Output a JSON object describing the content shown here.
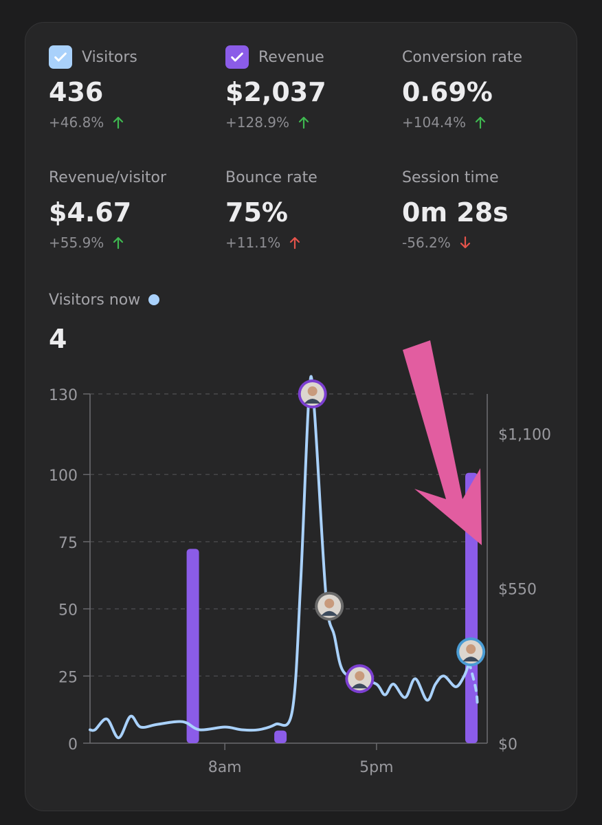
{
  "metrics": [
    {
      "label": "Visitors",
      "value": "436",
      "change": "+46.8%",
      "direction": "up",
      "checkbox": "checked",
      "checkbox_color": "#a9d1fb"
    },
    {
      "label": "Revenue",
      "value": "$2,037",
      "change": "+128.9%",
      "direction": "up",
      "checkbox": "checked",
      "checkbox_color": "#8b5ce8"
    },
    {
      "label": "Conversion rate",
      "value": "0.69%",
      "change": "+104.4%",
      "direction": "up"
    },
    {
      "label": "Revenue/visitor",
      "value": "$4.67",
      "change": "+55.9%",
      "direction": "up"
    },
    {
      "label": "Bounce rate",
      "value": "75%",
      "change": "+11.1%",
      "direction": "up-bad"
    },
    {
      "label": "Session time",
      "value": "0m 28s",
      "change": "-56.2%",
      "direction": "down"
    }
  ],
  "visitors_now": {
    "label": "Visitors now",
    "value": "4",
    "dot_color": "#a9d1fb"
  },
  "colors": {
    "up": "#3fb950",
    "bad": "#e5534b",
    "line": "#a9d1fb",
    "bar": "#8b5ce8",
    "annotation": "#e25da0"
  },
  "chart_data": {
    "type": "line",
    "left_axis": {
      "ticks": [
        "0",
        "25",
        "50",
        "75",
        "100",
        "130"
      ],
      "values": [
        0,
        25,
        50,
        75,
        100,
        130
      ]
    },
    "right_axis": {
      "ticks": [
        "$0",
        "$550",
        "$1,100"
      ],
      "values": [
        0,
        550,
        1100
      ]
    },
    "x_labels": [
      {
        "label": "8am",
        "at": 8
      },
      {
        "label": "5pm",
        "at": 17
      }
    ],
    "x_range": [
      0,
      23
    ],
    "series": [
      {
        "kind": "visitors-line",
        "axis": "left",
        "points": [
          [
            0,
            5
          ],
          [
            0.3,
            5
          ],
          [
            1,
            9
          ],
          [
            1.7,
            2
          ],
          [
            2.4,
            10
          ],
          [
            3,
            6
          ],
          [
            4,
            7
          ],
          [
            5.5,
            8
          ],
          [
            6.5,
            5
          ],
          [
            8,
            6
          ],
          [
            9,
            5
          ],
          [
            10,
            5
          ],
          [
            11,
            7
          ],
          [
            12,
            12
          ],
          [
            12.5,
            60
          ],
          [
            13,
            130
          ],
          [
            13.3,
            125
          ],
          [
            14,
            55
          ],
          [
            14.5,
            40
          ],
          [
            15,
            27
          ],
          [
            16,
            24
          ],
          [
            17,
            22
          ],
          [
            17.5,
            18
          ],
          [
            18,
            22
          ],
          [
            18.7,
            17
          ],
          [
            19.3,
            24
          ],
          [
            20,
            16
          ],
          [
            20.5,
            22
          ],
          [
            21,
            25
          ],
          [
            21.7,
            21
          ],
          [
            22.2,
            25
          ],
          [
            22.5,
            30
          ]
        ]
      },
      {
        "kind": "visitors-projection",
        "axis": "left",
        "points": [
          [
            22.5,
            30
          ],
          [
            22.9,
            20
          ],
          [
            23,
            13
          ]
        ]
      },
      {
        "kind": "revenue-bars",
        "axis": "right",
        "bars": [
          [
            6.1,
            690
          ],
          [
            11.3,
            45
          ],
          [
            23,
            960
          ]
        ]
      }
    ],
    "avatars": [
      {
        "at": [
          13.2,
          130
        ],
        "ring": "#7c3fd1"
      },
      {
        "at": [
          14.2,
          51
        ],
        "ring": "#6a6a6a"
      },
      {
        "at": [
          16,
          24
        ],
        "ring": "#7c3fd1"
      },
      {
        "at": [
          22.6,
          34
        ],
        "ring": "#4a9cd4"
      }
    ]
  }
}
